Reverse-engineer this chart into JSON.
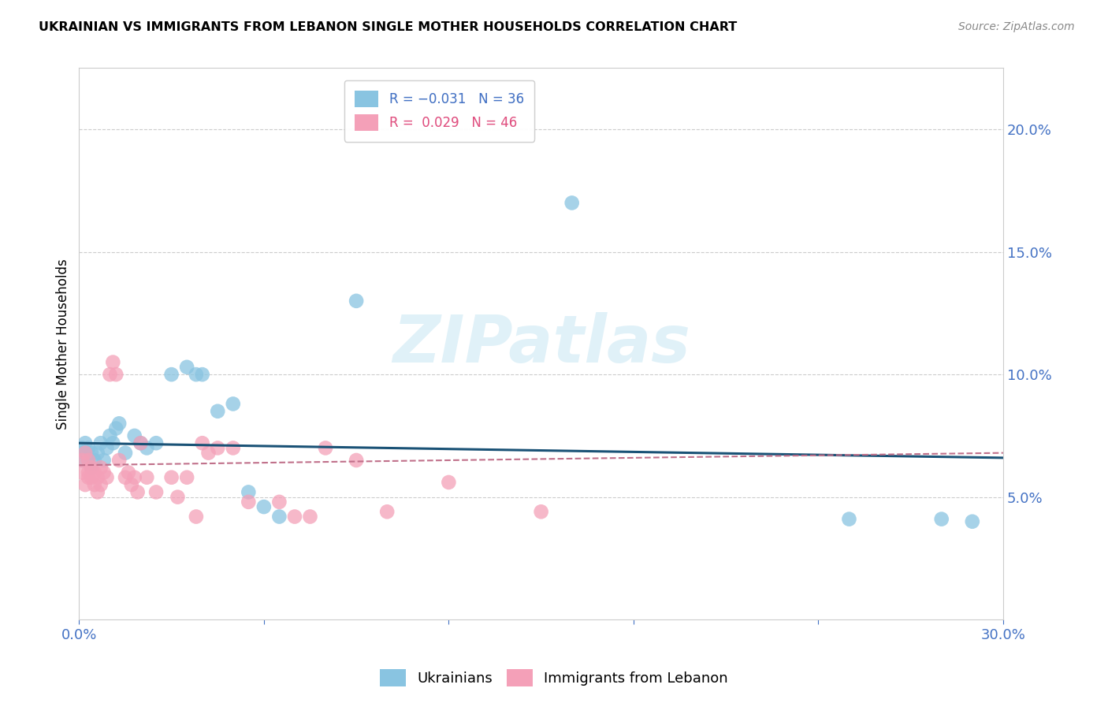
{
  "title": "UKRAINIAN VS IMMIGRANTS FROM LEBANON SINGLE MOTHER HOUSEHOLDS CORRELATION CHART",
  "source": "Source: ZipAtlas.com",
  "ylabel": "Single Mother Households",
  "right_yticks": [
    0.05,
    0.1,
    0.15,
    0.2
  ],
  "right_ytick_labels": [
    "5.0%",
    "10.0%",
    "15.0%",
    "20.0%"
  ],
  "xmin": 0.0,
  "xmax": 0.3,
  "ymin": 0.0,
  "ymax": 0.225,
  "legend_R_blue": "R = −0.031",
  "legend_N_blue": "N = 36",
  "legend_R_pink": "R =  0.029",
  "legend_N_pink": "N = 46",
  "watermark": "ZIPatlas",
  "blue_color": "#89c4e1",
  "pink_color": "#f4a0b8",
  "line_blue_color": "#1a5276",
  "line_pink_color": "#c0708a",
  "ukrainians_x": [
    0.001,
    0.001,
    0.002,
    0.002,
    0.003,
    0.003,
    0.004,
    0.004,
    0.005,
    0.006,
    0.007,
    0.008,
    0.009,
    0.01,
    0.011,
    0.012,
    0.013,
    0.015,
    0.018,
    0.02,
    0.022,
    0.025,
    0.03,
    0.035,
    0.038,
    0.04,
    0.045,
    0.05,
    0.055,
    0.06,
    0.065,
    0.09,
    0.16,
    0.25,
    0.28,
    0.29
  ],
  "ukrainians_y": [
    0.065,
    0.07,
    0.068,
    0.072,
    0.065,
    0.07,
    0.068,
    0.062,
    0.065,
    0.068,
    0.072,
    0.065,
    0.07,
    0.075,
    0.072,
    0.078,
    0.08,
    0.068,
    0.075,
    0.072,
    0.07,
    0.072,
    0.1,
    0.103,
    0.1,
    0.1,
    0.085,
    0.088,
    0.052,
    0.046,
    0.042,
    0.13,
    0.17,
    0.041,
    0.041,
    0.04
  ],
  "lebanon_x": [
    0.001,
    0.001,
    0.002,
    0.002,
    0.003,
    0.003,
    0.003,
    0.004,
    0.004,
    0.005,
    0.005,
    0.006,
    0.006,
    0.007,
    0.007,
    0.008,
    0.009,
    0.01,
    0.011,
    0.012,
    0.013,
    0.015,
    0.016,
    0.017,
    0.018,
    0.019,
    0.02,
    0.022,
    0.025,
    0.03,
    0.032,
    0.035,
    0.038,
    0.04,
    0.042,
    0.045,
    0.05,
    0.055,
    0.065,
    0.07,
    0.075,
    0.08,
    0.09,
    0.1,
    0.12,
    0.15
  ],
  "lebanon_y": [
    0.065,
    0.06,
    0.068,
    0.055,
    0.065,
    0.06,
    0.058,
    0.062,
    0.058,
    0.06,
    0.055,
    0.058,
    0.052,
    0.062,
    0.055,
    0.06,
    0.058,
    0.1,
    0.105,
    0.1,
    0.065,
    0.058,
    0.06,
    0.055,
    0.058,
    0.052,
    0.072,
    0.058,
    0.052,
    0.058,
    0.05,
    0.058,
    0.042,
    0.072,
    0.068,
    0.07,
    0.07,
    0.048,
    0.048,
    0.042,
    0.042,
    0.07,
    0.065,
    0.044,
    0.056,
    0.044
  ]
}
